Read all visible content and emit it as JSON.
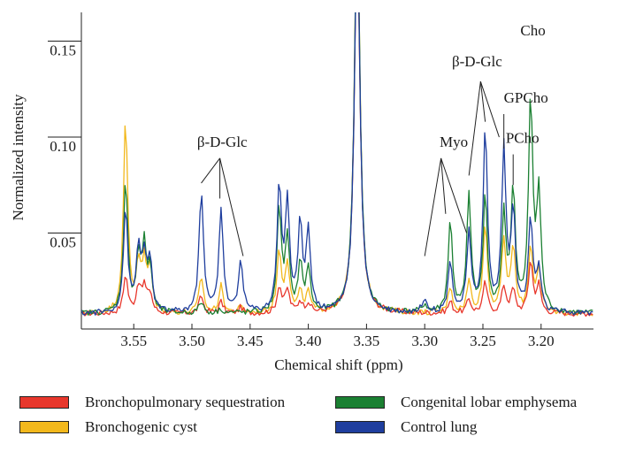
{
  "chart_data": {
    "type": "line",
    "title": "",
    "xlabel": "Chemical shift (ppm)",
    "ylabel": "Normalized intensity",
    "xlim": [
      3.595,
      3.155
    ],
    "x_reversed": true,
    "ylim": [
      0.0,
      0.165
    ],
    "x_ticks": [
      "3.55",
      "3.50",
      "3.45",
      "3.40",
      "3.35",
      "3.30",
      "3.25",
      "3.20"
    ],
    "y_ticks": [
      "0.05",
      "0.10",
      "0.15"
    ],
    "grid": false,
    "legend_position": "bottom",
    "series": [
      {
        "name": "Bronchopulmonary sequestration",
        "color": "#e8372c",
        "peaks": [
          [
            3.557,
            0.028
          ],
          [
            3.546,
            0.022
          ],
          [
            3.541,
            0.021
          ],
          [
            3.536,
            0.018
          ],
          [
            3.492,
            0.017
          ],
          [
            3.475,
            0.014
          ],
          [
            3.458,
            0.011
          ],
          [
            3.425,
            0.022
          ],
          [
            3.418,
            0.02
          ],
          [
            3.407,
            0.014
          ],
          [
            3.4,
            0.013
          ],
          [
            3.358,
            0.21
          ],
          [
            3.3,
            0.008
          ],
          [
            3.278,
            0.014
          ],
          [
            3.262,
            0.015
          ],
          [
            3.248,
            0.024
          ],
          [
            3.232,
            0.022
          ],
          [
            3.224,
            0.02
          ],
          [
            3.209,
            0.035
          ],
          [
            3.202,
            0.022
          ]
        ]
      },
      {
        "name": "Bronchogenic cyst",
        "color": "#f2b81c",
        "peaks": [
          [
            3.557,
            0.108
          ],
          [
            3.546,
            0.032
          ],
          [
            3.541,
            0.032
          ],
          [
            3.536,
            0.03
          ],
          [
            3.492,
            0.027
          ],
          [
            3.475,
            0.022
          ],
          [
            3.458,
            0.011
          ],
          [
            3.425,
            0.04
          ],
          [
            3.418,
            0.034
          ],
          [
            3.407,
            0.018
          ],
          [
            3.4,
            0.018
          ],
          [
            3.358,
            0.22
          ],
          [
            3.3,
            0.008
          ],
          [
            3.278,
            0.022
          ],
          [
            3.262,
            0.024
          ],
          [
            3.248,
            0.054
          ],
          [
            3.232,
            0.045
          ],
          [
            3.224,
            0.042
          ],
          [
            3.209,
            0.042
          ],
          [
            3.202,
            0.03
          ]
        ]
      },
      {
        "name": "Congenital lobar emphysema",
        "color": "#1b8032",
        "peaks": [
          [
            3.557,
            0.076
          ],
          [
            3.546,
            0.036
          ],
          [
            3.541,
            0.04
          ],
          [
            3.536,
            0.03
          ],
          [
            3.492,
            0.014
          ],
          [
            3.475,
            0.01
          ],
          [
            3.458,
            0.008
          ],
          [
            3.425,
            0.062
          ],
          [
            3.418,
            0.045
          ],
          [
            3.407,
            0.033
          ],
          [
            3.4,
            0.03
          ],
          [
            3.358,
            0.22
          ],
          [
            3.3,
            0.012
          ],
          [
            3.278,
            0.055
          ],
          [
            3.262,
            0.068
          ],
          [
            3.248,
            0.068
          ],
          [
            3.232,
            0.058
          ],
          [
            3.224,
            0.07
          ],
          [
            3.209,
            0.118
          ],
          [
            3.202,
            0.068
          ]
        ]
      },
      {
        "name": "Control lung",
        "color": "#1f3e9e",
        "peaks": [
          [
            3.557,
            0.062
          ],
          [
            3.546,
            0.04
          ],
          [
            3.541,
            0.036
          ],
          [
            3.536,
            0.033
          ],
          [
            3.492,
            0.072
          ],
          [
            3.475,
            0.062
          ],
          [
            3.458,
            0.035
          ],
          [
            3.425,
            0.073
          ],
          [
            3.418,
            0.064
          ],
          [
            3.407,
            0.052
          ],
          [
            3.4,
            0.05
          ],
          [
            3.358,
            0.21
          ],
          [
            3.3,
            0.016
          ],
          [
            3.278,
            0.035
          ],
          [
            3.262,
            0.048
          ],
          [
            3.248,
            0.104
          ],
          [
            3.232,
            0.092
          ],
          [
            3.224,
            0.06
          ],
          [
            3.209,
            0.056
          ],
          [
            3.202,
            0.03
          ]
        ]
      }
    ],
    "annotations": [
      {
        "text": "β-D-Glc",
        "x": 3.474,
        "y": 0.095
      },
      {
        "text": "Myo",
        "x": 3.275,
        "y": 0.095
      },
      {
        "text": "β-D-Glc",
        "x": 3.255,
        "y": 0.137
      },
      {
        "text": "GPCho",
        "x": 3.213,
        "y": 0.118
      },
      {
        "text": "PCho",
        "x": 3.216,
        "y": 0.097
      },
      {
        "text": "Cho",
        "x": 3.207,
        "y": 0.153
      }
    ]
  }
}
